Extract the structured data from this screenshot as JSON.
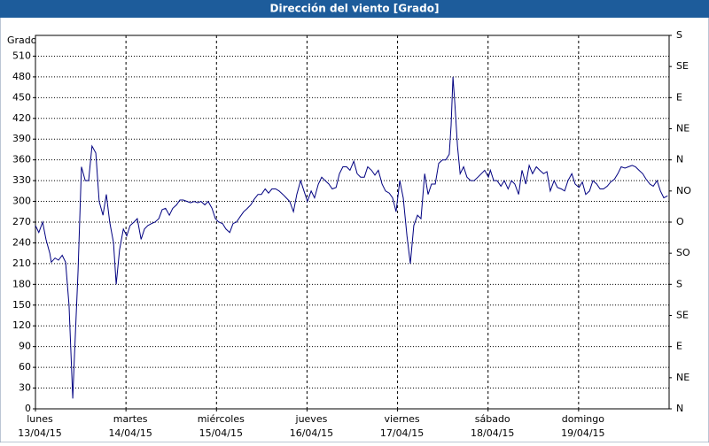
{
  "chart_data": {
    "type": "line",
    "title": "Dirección del viento [Grado]",
    "y_label": "Grado",
    "xlim": [
      0,
      168
    ],
    "xticks": [
      {
        "value": 0,
        "label": "lunes",
        "date": "13/04/15"
      },
      {
        "value": 24,
        "label": "martes",
        "date": "14/04/15"
      },
      {
        "value": 48,
        "label": "miércoles",
        "date": "15/04/15"
      },
      {
        "value": 72,
        "label": "jueves",
        "date": "16/04/15"
      },
      {
        "value": 96,
        "label": "viernes",
        "date": "17/04/15"
      },
      {
        "value": 120,
        "label": "sábado",
        "date": "18/04/15"
      },
      {
        "value": 144,
        "label": "domingo",
        "date": "19/04/15"
      }
    ],
    "ylim": [
      0,
      540
    ],
    "yticks": [
      0,
      30,
      60,
      90,
      120,
      150,
      180,
      210,
      240,
      270,
      300,
      330,
      360,
      390,
      420,
      450,
      480,
      510
    ],
    "y2lim": [
      0,
      540
    ],
    "y2ticks": [
      {
        "value": 0,
        "label": "N"
      },
      {
        "value": 45,
        "label": "NE"
      },
      {
        "value": 90,
        "label": "E"
      },
      {
        "value": 135,
        "label": "SE"
      },
      {
        "value": 180,
        "label": "S"
      },
      {
        "value": 225,
        "label": "SO"
      },
      {
        "value": 270,
        "label": "O"
      },
      {
        "value": 315,
        "label": "NO"
      },
      {
        "value": 360,
        "label": "N"
      },
      {
        "value": 405,
        "label": "NE"
      },
      {
        "value": 450,
        "label": "E"
      },
      {
        "value": 495,
        "label": "SE"
      },
      {
        "value": 540,
        "label": "S"
      }
    ],
    "grid": true,
    "series": [
      {
        "color": "#000080",
        "x": [
          0,
          0.9,
          1.9,
          2.8,
          3.8,
          4.2,
          5.2,
          6.1,
          7.1,
          8,
          8.9,
          9.9,
          10.3,
          11.3,
          12.2,
          13.2,
          14.1,
          15,
          16,
          16.9,
          17.9,
          18.8,
          19.7,
          20.7,
          21.4,
          22.3,
          23.3,
          24.2,
          25.1,
          26.1,
          27,
          28,
          28.9,
          29.8,
          30.8,
          31.7,
          32.7,
          33.6,
          34.5,
          35.5,
          36.4,
          37.4,
          38.3,
          39.2,
          40.2,
          41.1,
          42.1,
          43,
          43.9,
          44.9,
          45.8,
          46.8,
          47.7,
          48.6,
          49.6,
          50.5,
          51.5,
          52.4,
          53.3,
          54.3,
          55.2,
          56.2,
          57.1,
          58,
          59,
          59.9,
          60.9,
          61.8,
          62.7,
          63.7,
          64.6,
          65.6,
          66.5,
          67.4,
          68.4,
          69.3,
          70.3,
          71.2,
          72.1,
          73.1,
          74,
          75,
          75.9,
          76.8,
          77.8,
          78.7,
          79.7,
          80.6,
          81.5,
          82.5,
          83.4,
          84.4,
          85.3,
          86.2,
          87.2,
          88.1,
          89.1,
          90,
          90.9,
          91.9,
          92.8,
          93.8,
          94.7,
          95.6,
          96.6,
          97.5,
          98.5,
          99.4,
          100.3,
          101.3,
          102.2,
          103.2,
          104.1,
          105,
          106,
          106.9,
          107.9,
          108.8,
          109.7,
          110.2,
          110.7,
          111.2,
          111.9,
          112.6,
          113.5,
          114.4,
          115.4,
          116.3,
          117.3,
          118.2,
          119.1,
          120.1,
          120.6,
          121.5,
          122.4,
          123.4,
          124.3,
          125.3,
          126.2,
          127.1,
          128.1,
          129,
          130,
          130.9,
          131.8,
          132.8,
          133.7,
          134.7,
          135.6,
          136.5,
          137.5,
          138.4,
          139.4,
          140.3,
          141.2,
          142.2,
          143.1,
          144.1,
          145,
          145.9,
          146.9,
          147.8,
          148.8,
          149.7,
          150.6,
          151.6,
          152.5,
          153.5,
          154.4,
          155.3,
          156.3,
          157.2,
          158.2,
          159.1,
          160,
          161,
          161.9,
          162.9,
          163.8,
          164.8,
          165.7,
          166.6,
          167.6
        ],
        "values": [
          265,
          255,
          270,
          245,
          225,
          212,
          218,
          215,
          222,
          212,
          150,
          15,
          70,
          200,
          350,
          330,
          330,
          380,
          370,
          300,
          280,
          310,
          270,
          240,
          180,
          230,
          260,
          250,
          265,
          270,
          275,
          245,
          260,
          265,
          268,
          270,
          275,
          288,
          290,
          280,
          290,
          295,
          302,
          302,
          300,
          298,
          300,
          298,
          300,
          295,
          300,
          290,
          275,
          270,
          268,
          260,
          255,
          268,
          270,
          278,
          285,
          290,
          295,
          303,
          310,
          310,
          318,
          312,
          318,
          318,
          315,
          310,
          305,
          300,
          285,
          310,
          330,
          315,
          300,
          315,
          305,
          325,
          335,
          330,
          325,
          318,
          320,
          340,
          350,
          350,
          345,
          358,
          340,
          335,
          335,
          350,
          345,
          338,
          345,
          325,
          315,
          312,
          305,
          285,
          330,
          305,
          250,
          210,
          265,
          280,
          275,
          340,
          310,
          325,
          325,
          355,
          360,
          360,
          368,
          410,
          480,
          440,
          380,
          340,
          350,
          335,
          330,
          330,
          335,
          340,
          345,
          335,
          345,
          330,
          330,
          322,
          330,
          318,
          330,
          325,
          310,
          345,
          325,
          352,
          340,
          350,
          345,
          340,
          343,
          315,
          330,
          320,
          318,
          315,
          330,
          340,
          325,
          320,
          328,
          310,
          315,
          330,
          325,
          318,
          318,
          322,
          328,
          332,
          340,
          350,
          348,
          350,
          352,
          350,
          345,
          340,
          332,
          325,
          322,
          330,
          315,
          305,
          308
        ]
      }
    ]
  }
}
